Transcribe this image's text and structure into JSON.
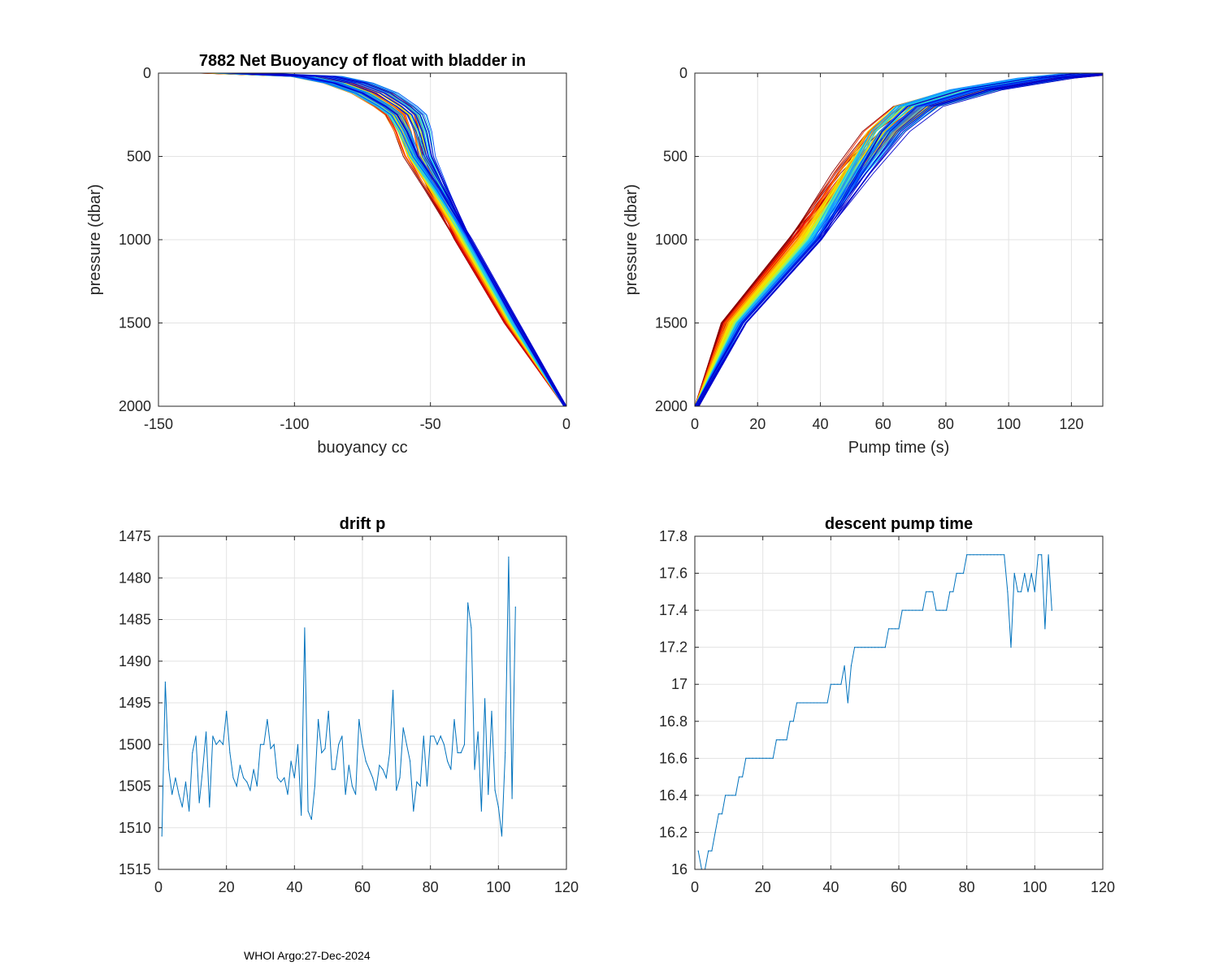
{
  "footer": "WHOI Argo:27-Dec-2024",
  "colors": {
    "series": "#0072bd",
    "palette": [
      "#8b0000",
      "#d40000",
      "#ff3300",
      "#ff7f00",
      "#ffb000",
      "#ffd700",
      "#e6f000",
      "#9cf060",
      "#40e0d0",
      "#00bfff",
      "#1e90ff",
      "#0050ff",
      "#0000cd"
    ]
  },
  "chart_data": [
    {
      "id": "buoyancy",
      "type": "line",
      "title": "7882 Net Buoyancy of float with bladder in",
      "xlabel": "buoyancy cc",
      "ylabel": "pressure (dbar)",
      "xlim": [
        -150,
        0
      ],
      "ylim": [
        0,
        2000
      ],
      "y_reversed": true,
      "xticks": [
        -150,
        -100,
        -50,
        0
      ],
      "xtick_labels": [
        "-150",
        "-100",
        "-50",
        "0"
      ],
      "yticks": [
        0,
        500,
        1000,
        1500,
        2000
      ],
      "ytick_labels": [
        "0",
        "500",
        "1000",
        "1500",
        "2000"
      ],
      "profile_count": 105,
      "profile_color": "jet colormap, red (early) to blue (late)",
      "representative_profile": {
        "pressure": [
          0,
          20,
          60,
          120,
          200,
          250,
          350,
          500,
          700,
          1000,
          1500,
          2000
        ],
        "buoyancy": [
          -120,
          -92,
          -80,
          -70,
          -62,
          -58,
          -55,
          -52,
          -45,
          -35,
          -18,
          0
        ]
      }
    },
    {
      "id": "pumptime",
      "type": "line",
      "title": "",
      "xlabel": "Pump time (s)",
      "ylabel": "pressure (dbar)",
      "xlim": [
        0,
        130
      ],
      "ylim": [
        0,
        2000
      ],
      "y_reversed": true,
      "xticks": [
        0,
        20,
        40,
        60,
        80,
        100,
        120
      ],
      "xtick_labels": [
        "0",
        "20",
        "40",
        "60",
        "80",
        "100",
        "120"
      ],
      "yticks": [
        0,
        500,
        1000,
        1500,
        2000
      ],
      "ytick_labels": [
        "0",
        "500",
        "1000",
        "1500",
        "2000"
      ],
      "profile_count": 105,
      "profile_color": "jet colormap, red (early) to blue (late)",
      "representative_profile": {
        "pressure": [
          0,
          30,
          100,
          200,
          350,
          600,
          1000,
          1500,
          2000
        ],
        "pump_time": [
          128,
          112,
          90,
          72,
          63,
          54,
          40,
          16,
          0
        ]
      }
    },
    {
      "id": "drift",
      "type": "line",
      "title": "drift p",
      "xlabel": "",
      "ylabel": "",
      "xlim": [
        0,
        120
      ],
      "ylim": [
        1475,
        1515
      ],
      "y_reversed": true,
      "xticks": [
        0,
        20,
        40,
        60,
        80,
        100,
        120
      ],
      "xtick_labels": [
        "0",
        "20",
        "40",
        "60",
        "80",
        "100",
        "120"
      ],
      "yticks": [
        1475,
        1480,
        1485,
        1490,
        1495,
        1500,
        1505,
        1510,
        1515
      ],
      "ytick_labels": [
        "1475",
        "1480",
        "1485",
        "1490",
        "1495",
        "1500",
        "1505",
        "1510",
        "1515"
      ],
      "x": [
        1,
        2,
        3,
        4,
        5,
        6,
        7,
        8,
        9,
        10,
        11,
        12,
        13,
        14,
        15,
        16,
        17,
        18,
        19,
        20,
        21,
        22,
        23,
        24,
        25,
        26,
        27,
        28,
        29,
        30,
        31,
        32,
        33,
        34,
        35,
        36,
        37,
        38,
        39,
        40,
        41,
        42,
        43,
        44,
        45,
        46,
        47,
        48,
        49,
        50,
        51,
        52,
        53,
        54,
        55,
        56,
        57,
        58,
        59,
        60,
        61,
        62,
        63,
        64,
        65,
        66,
        67,
        68,
        69,
        70,
        71,
        72,
        73,
        74,
        75,
        76,
        77,
        78,
        79,
        80,
        81,
        82,
        83,
        84,
        85,
        86,
        87,
        88,
        89,
        90,
        91,
        92,
        93,
        94,
        95,
        96,
        97,
        98,
        99,
        100,
        101,
        102,
        103,
        104,
        105
      ],
      "values": [
        1511,
        1492.5,
        1503,
        1506,
        1504,
        1506,
        1507.5,
        1504.5,
        1508,
        1501,
        1499,
        1507,
        1503,
        1498.5,
        1507.5,
        1499,
        1500,
        1499.5,
        1500,
        1496,
        1501,
        1504,
        1505,
        1502.5,
        1504,
        1504.5,
        1505.5,
        1503,
        1505,
        1500,
        1500,
        1497,
        1500.5,
        1500,
        1504,
        1504.5,
        1504,
        1506,
        1502,
        1504,
        1500,
        1508.5,
        1486,
        1508,
        1509,
        1505,
        1497,
        1501,
        1500.5,
        1496,
        1503,
        1503,
        1500,
        1499,
        1506,
        1502.5,
        1505,
        1506,
        1497,
        1500,
        1502,
        1503,
        1504,
        1505.5,
        1502.5,
        1503,
        1504,
        1501,
        1493.5,
        1505.5,
        1504,
        1498,
        1500,
        1502,
        1508,
        1504.5,
        1505,
        1499,
        1505,
        1499,
        1499,
        1500,
        1499,
        1500,
        1502,
        1503,
        1497,
        1501,
        1501,
        1500,
        1483,
        1486,
        1503,
        1498.5,
        1508,
        1494.5,
        1506,
        1496,
        1505.5,
        1507.5,
        1511,
        1501,
        1477.5,
        1506.5,
        1483.5
      ]
    },
    {
      "id": "pump",
      "type": "line",
      "title": "descent pump time",
      "xlabel": "",
      "ylabel": "",
      "xlim": [
        0,
        120
      ],
      "ylim": [
        16,
        17.8
      ],
      "y_reversed": false,
      "xticks": [
        0,
        20,
        40,
        60,
        80,
        100,
        120
      ],
      "xtick_labels": [
        "0",
        "20",
        "40",
        "60",
        "80",
        "100",
        "120"
      ],
      "yticks": [
        16,
        16.2,
        16.4,
        16.6,
        16.8,
        17,
        17.2,
        17.4,
        17.6,
        17.8
      ],
      "ytick_labels": [
        "16",
        "16.2",
        "16.4",
        "16.6",
        "16.8",
        "17",
        "17.2",
        "17.4",
        "17.6",
        "17.8"
      ],
      "x": [
        1,
        2,
        3,
        4,
        5,
        6,
        7,
        8,
        9,
        10,
        11,
        12,
        13,
        14,
        15,
        16,
        17,
        18,
        19,
        20,
        21,
        22,
        23,
        24,
        25,
        26,
        27,
        28,
        29,
        30,
        31,
        32,
        33,
        34,
        35,
        36,
        37,
        38,
        39,
        40,
        41,
        42,
        43,
        44,
        45,
        46,
        47,
        48,
        49,
        50,
        51,
        52,
        53,
        54,
        55,
        56,
        57,
        58,
        59,
        60,
        61,
        62,
        63,
        64,
        65,
        66,
        67,
        68,
        69,
        70,
        71,
        72,
        73,
        74,
        75,
        76,
        77,
        78,
        79,
        80,
        81,
        82,
        83,
        84,
        85,
        86,
        87,
        88,
        89,
        90,
        91,
        92,
        93,
        94,
        95,
        96,
        97,
        98,
        99,
        100,
        101,
        102,
        103,
        104,
        105
      ],
      "values": [
        16.1,
        16,
        16,
        16.1,
        16.1,
        16.2,
        16.3,
        16.3,
        16.4,
        16.4,
        16.4,
        16.4,
        16.5,
        16.5,
        16.6,
        16.6,
        16.6,
        16.6,
        16.6,
        16.6,
        16.6,
        16.6,
        16.6,
        16.7,
        16.7,
        16.7,
        16.7,
        16.8,
        16.8,
        16.9,
        16.9,
        16.9,
        16.9,
        16.9,
        16.9,
        16.9,
        16.9,
        16.9,
        16.9,
        17,
        17,
        17,
        17,
        17.1,
        16.9,
        17.1,
        17.2,
        17.2,
        17.2,
        17.2,
        17.2,
        17.2,
        17.2,
        17.2,
        17.2,
        17.2,
        17.3,
        17.3,
        17.3,
        17.3,
        17.4,
        17.4,
        17.4,
        17.4,
        17.4,
        17.4,
        17.4,
        17.5,
        17.5,
        17.5,
        17.4,
        17.4,
        17.4,
        17.4,
        17.5,
        17.5,
        17.6,
        17.6,
        17.6,
        17.7,
        17.7,
        17.7,
        17.7,
        17.7,
        17.7,
        17.7,
        17.7,
        17.7,
        17.7,
        17.7,
        17.7,
        17.5,
        17.2,
        17.6,
        17.5,
        17.5,
        17.6,
        17.5,
        17.6,
        17.5,
        17.7,
        17.7,
        17.3,
        17.7,
        17.4
      ]
    }
  ]
}
